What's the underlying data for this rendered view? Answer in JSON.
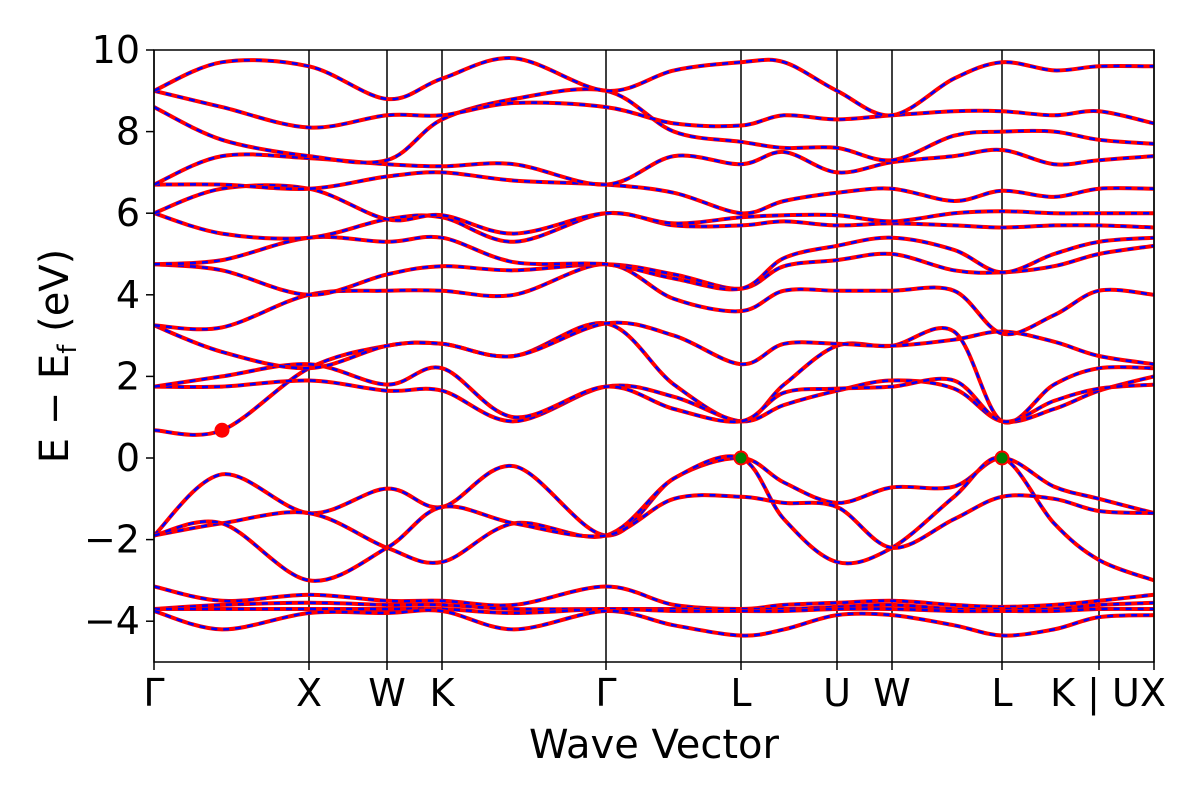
{
  "chart_data": {
    "type": "line",
    "title": "",
    "xlabel": "Wave Vector",
    "ylabel": "E − E",
    "ylabel_sub": "f",
    "ylabel_unit": " (eV)",
    "ylim": [
      -5,
      10
    ],
    "yticks": [
      -4,
      -2,
      0,
      2,
      4,
      6,
      8,
      10
    ],
    "ytick_labels": [
      "−4",
      "−2",
      "0",
      "2",
      "4",
      "6",
      "8",
      "10"
    ],
    "xlim": [
      0,
      10
    ],
    "kpoints": [
      {
        "label": "Γ",
        "x": 0.0
      },
      {
        "label": "X",
        "x": 1.55
      },
      {
        "label": "W",
        "x": 2.33
      },
      {
        "label": "K",
        "x": 2.88
      },
      {
        "label": "Γ",
        "x": 4.52
      },
      {
        "label": "L",
        "x": 5.87
      },
      {
        "label": "U",
        "x": 6.83
      },
      {
        "label": "W",
        "x": 7.38
      },
      {
        "label": "L",
        "x": 8.48
      },
      {
        "label": "K | U",
        "x": 9.45
      },
      {
        "label": "X",
        "x": 10.0
      }
    ],
    "markers": [
      {
        "name": "conduction-band-minimum",
        "x": 0.68,
        "y": 0.68,
        "color": "#ff0000"
      },
      {
        "name": "valence-band-maximum",
        "x": 5.87,
        "y": 0.0,
        "color": "#008000"
      },
      {
        "name": "valence-band-maximum",
        "x": 8.48,
        "y": 0.0,
        "color": "#008000"
      }
    ],
    "line_colors": {
      "solid": "#ff0000",
      "dashed": "#0000ff"
    },
    "series": [
      {
        "x": [
          0,
          0.68,
          1.55,
          2.33,
          2.88,
          3.6,
          4.52,
          5.2,
          5.87,
          6.3,
          6.83,
          7.38,
          8.0,
          8.48,
          9.0,
          9.45,
          10.0
        ],
        "y": [
          -1.9,
          -0.4,
          -1.35,
          -0.75,
          -1.2,
          -0.2,
          -1.9,
          -0.5,
          0.0,
          -0.6,
          -1.1,
          -0.72,
          -0.7,
          0.0,
          -0.7,
          -1.0,
          -1.35
        ]
      },
      {
        "x": [
          0,
          0.68,
          1.55,
          2.33,
          2.88,
          3.6,
          4.52,
          5.2,
          5.87,
          6.3,
          6.83,
          7.38,
          8.0,
          8.48,
          9.0,
          9.45,
          10.0
        ],
        "y": [
          -1.9,
          -1.6,
          -1.35,
          -2.2,
          -2.55,
          -1.6,
          -1.9,
          -0.5,
          0.0,
          -1.5,
          -2.55,
          -2.2,
          -0.95,
          0.0,
          -1.6,
          -2.5,
          -3.0
        ]
      },
      {
        "x": [
          0,
          0.68,
          1.55,
          2.33,
          2.88,
          3.6,
          4.52,
          5.2,
          5.87,
          6.3,
          6.83,
          7.38,
          8.0,
          8.48,
          9.0,
          9.45,
          10.0
        ],
        "y": [
          -1.9,
          -1.6,
          -3.0,
          -2.2,
          -1.2,
          -1.6,
          -1.9,
          -1.0,
          -0.95,
          -1.1,
          -1.2,
          -2.2,
          -1.5,
          -0.95,
          -1.0,
          -1.3,
          -1.35
        ]
      },
      {
        "x": [
          0,
          0.68,
          1.55,
          2.33,
          2.88,
          3.6,
          4.52,
          5.2,
          5.87,
          6.3,
          6.83,
          7.38,
          8.0,
          8.48,
          9.0,
          9.45,
          10.0
        ],
        "y": [
          0.68,
          0.68,
          2.2,
          2.75,
          2.8,
          2.5,
          3.3,
          1.8,
          0.9,
          1.8,
          2.75,
          2.75,
          3.1,
          0.9,
          1.8,
          2.2,
          2.2
        ]
      },
      {
        "x": [
          0,
          0.68,
          1.55,
          2.33,
          2.88,
          3.6,
          4.52,
          5.2,
          5.87,
          6.3,
          6.83,
          7.38,
          8.0,
          8.48,
          9.0,
          9.45,
          10.0
        ],
        "y": [
          1.75,
          1.75,
          1.9,
          1.65,
          1.65,
          0.9,
          1.75,
          1.5,
          0.9,
          1.3,
          1.65,
          1.9,
          1.7,
          0.9,
          1.2,
          1.65,
          2.0
        ]
      },
      {
        "x": [
          0,
          0.68,
          1.55,
          2.33,
          2.88,
          3.6,
          4.52,
          5.2,
          5.87,
          6.3,
          6.83,
          7.38,
          8.0,
          8.48,
          9.0,
          9.45,
          10.0
        ],
        "y": [
          1.75,
          2.0,
          2.3,
          1.8,
          2.2,
          1.0,
          1.75,
          1.2,
          0.9,
          1.6,
          1.7,
          1.75,
          1.9,
          0.9,
          1.4,
          1.7,
          1.8
        ]
      },
      {
        "x": [
          0,
          0.68,
          1.55,
          2.33,
          2.88,
          3.6,
          4.52,
          5.2,
          5.87,
          6.3,
          6.83,
          7.38,
          8.0,
          8.48,
          9.0,
          9.45,
          10.0
        ],
        "y": [
          3.25,
          2.6,
          2.2,
          2.75,
          2.8,
          2.5,
          3.3,
          3.0,
          2.3,
          2.8,
          2.8,
          2.75,
          2.9,
          3.1,
          2.85,
          2.5,
          2.3
        ]
      },
      {
        "x": [
          0,
          0.68,
          1.55,
          2.33,
          2.88,
          3.6,
          4.52,
          5.2,
          5.87,
          6.3,
          6.83,
          7.38,
          8.0,
          8.48,
          9.0,
          9.45,
          10.0
        ],
        "y": [
          3.25,
          3.2,
          4.0,
          4.1,
          4.1,
          4.0,
          4.75,
          3.9,
          3.6,
          4.1,
          4.1,
          4.1,
          4.1,
          3.05,
          3.5,
          4.1,
          4.0
        ]
      },
      {
        "x": [
          0,
          0.68,
          1.55,
          2.33,
          2.88,
          3.6,
          4.52,
          5.2,
          5.87,
          6.3,
          6.83,
          7.38,
          8.0,
          8.48,
          9.0,
          9.45,
          10.0
        ],
        "y": [
          4.75,
          4.6,
          4.0,
          4.5,
          4.7,
          4.6,
          4.75,
          4.5,
          4.15,
          4.7,
          4.85,
          5.0,
          4.6,
          4.55,
          4.7,
          5.0,
          5.2
        ]
      },
      {
        "x": [
          0,
          0.68,
          1.55,
          2.33,
          2.88,
          3.6,
          4.52,
          5.2,
          5.87,
          6.3,
          6.83,
          7.38,
          8.0,
          8.48,
          9.0,
          9.45,
          10.0
        ],
        "y": [
          4.75,
          4.85,
          5.4,
          5.3,
          5.4,
          4.8,
          4.75,
          4.4,
          4.15,
          4.9,
          5.2,
          5.4,
          5.1,
          4.55,
          5.0,
          5.3,
          5.4
        ]
      },
      {
        "x": [
          0,
          0.68,
          1.55,
          2.33,
          2.88,
          3.6,
          4.52,
          5.2,
          5.87,
          6.3,
          6.83,
          7.38,
          8.0,
          8.48,
          9.0,
          9.45,
          10.0
        ],
        "y": [
          6.0,
          5.5,
          5.4,
          5.85,
          5.9,
          5.3,
          6.0,
          5.7,
          5.7,
          5.8,
          5.7,
          5.75,
          5.7,
          5.65,
          5.7,
          5.7,
          5.65
        ]
      },
      {
        "x": [
          0,
          0.68,
          1.55,
          2.33,
          2.88,
          3.6,
          4.52,
          5.2,
          5.87,
          6.3,
          6.83,
          7.38,
          8.0,
          8.48,
          9.0,
          9.45,
          10.0
        ],
        "y": [
          6.0,
          6.6,
          6.6,
          5.85,
          5.95,
          5.5,
          6.0,
          5.75,
          5.9,
          5.95,
          5.95,
          5.8,
          6.0,
          6.05,
          6.0,
          6.0,
          6.0
        ]
      },
      {
        "x": [
          0,
          0.68,
          1.55,
          2.33,
          2.88,
          3.6,
          4.52,
          5.2,
          5.87,
          6.3,
          6.83,
          7.38,
          8.0,
          8.48,
          9.0,
          9.45,
          10.0
        ],
        "y": [
          6.7,
          6.7,
          6.6,
          6.9,
          7.0,
          6.8,
          6.7,
          6.5,
          6.0,
          6.3,
          6.5,
          6.6,
          6.3,
          6.55,
          6.4,
          6.6,
          6.6
        ]
      },
      {
        "x": [
          0,
          0.68,
          1.55,
          2.33,
          2.88,
          3.6,
          4.52,
          5.2,
          5.87,
          6.3,
          6.83,
          7.38,
          8.0,
          8.48,
          9.0,
          9.45,
          10.0
        ],
        "y": [
          6.7,
          7.4,
          7.35,
          7.2,
          7.15,
          7.2,
          6.7,
          7.4,
          7.2,
          7.5,
          7.0,
          7.25,
          7.4,
          7.55,
          7.2,
          7.3,
          7.4
        ]
      },
      {
        "x": [
          0,
          0.68,
          1.55,
          2.33,
          2.88,
          3.6,
          4.52,
          5.2,
          5.87,
          6.3,
          6.83,
          7.38,
          8.0,
          8.48,
          9.0,
          9.45,
          10.0
        ],
        "y": [
          8.6,
          7.8,
          7.4,
          7.3,
          8.3,
          8.8,
          9.0,
          8.0,
          7.75,
          7.6,
          7.6,
          7.3,
          7.9,
          8.0,
          8.0,
          7.8,
          7.7
        ]
      },
      {
        "x": [
          0,
          0.68,
          1.55,
          2.33,
          2.88,
          3.6,
          4.52,
          5.2,
          5.87,
          6.3,
          6.83,
          7.38,
          8.0,
          8.48,
          9.0,
          9.45,
          10.0
        ],
        "y": [
          9.0,
          8.6,
          8.1,
          8.4,
          8.4,
          8.7,
          8.6,
          8.2,
          8.15,
          8.4,
          8.3,
          8.4,
          8.5,
          8.5,
          8.4,
          8.5,
          8.2
        ]
      },
      {
        "x": [
          0,
          0.68,
          1.55,
          2.33,
          2.88,
          3.6,
          4.52,
          5.2,
          5.87,
          6.3,
          6.83,
          7.38,
          8.0,
          8.48,
          9.0,
          9.45,
          10.0
        ],
        "y": [
          9.0,
          9.7,
          9.6,
          8.8,
          9.3,
          9.8,
          9.0,
          9.5,
          9.7,
          9.7,
          9.0,
          8.4,
          9.3,
          9.7,
          9.5,
          9.6,
          9.6
        ]
      },
      {
        "x": [
          0,
          0.68,
          1.55,
          2.33,
          2.88,
          3.6,
          4.52,
          5.2,
          5.87,
          6.3,
          6.83,
          7.38,
          8.0,
          8.48,
          9.0,
          9.45,
          10.0
        ],
        "y": [
          -3.15,
          -3.5,
          -3.35,
          -3.5,
          -3.5,
          -3.6,
          -3.15,
          -3.6,
          -3.7,
          -3.6,
          -3.55,
          -3.5,
          -3.6,
          -3.65,
          -3.6,
          -3.5,
          -3.35
        ]
      },
      {
        "x": [
          0,
          0.68,
          1.55,
          2.33,
          2.88,
          3.6,
          4.52,
          5.2,
          5.87,
          6.3,
          6.83,
          7.38,
          8.0,
          8.48,
          9.0,
          9.45,
          10.0
        ],
        "y": [
          -3.7,
          -3.6,
          -3.55,
          -3.6,
          -3.6,
          -3.7,
          -3.7,
          -3.7,
          -3.7,
          -3.7,
          -3.65,
          -3.6,
          -3.7,
          -3.7,
          -3.7,
          -3.6,
          -3.55
        ]
      },
      {
        "x": [
          0,
          0.68,
          1.55,
          2.33,
          2.88,
          3.6,
          4.52,
          5.2,
          5.87,
          6.3,
          6.83,
          7.38,
          8.0,
          8.48,
          9.0,
          9.45,
          10.0
        ],
        "y": [
          -3.7,
          -3.7,
          -3.7,
          -3.7,
          -3.7,
          -3.8,
          -3.7,
          -3.75,
          -3.75,
          -3.75,
          -3.7,
          -3.7,
          -3.75,
          -3.75,
          -3.75,
          -3.7,
          -3.7
        ]
      },
      {
        "x": [
          0,
          0.68,
          1.55,
          2.33,
          2.88,
          3.6,
          4.52,
          5.2,
          5.87,
          6.3,
          6.83,
          7.38,
          8.0,
          8.48,
          9.0,
          9.45,
          10.0
        ],
        "y": [
          -3.75,
          -4.2,
          -3.8,
          -3.8,
          -3.75,
          -4.2,
          -3.75,
          -4.1,
          -4.35,
          -4.2,
          -3.85,
          -3.85,
          -4.1,
          -4.35,
          -4.2,
          -3.9,
          -3.85
        ]
      }
    ]
  }
}
